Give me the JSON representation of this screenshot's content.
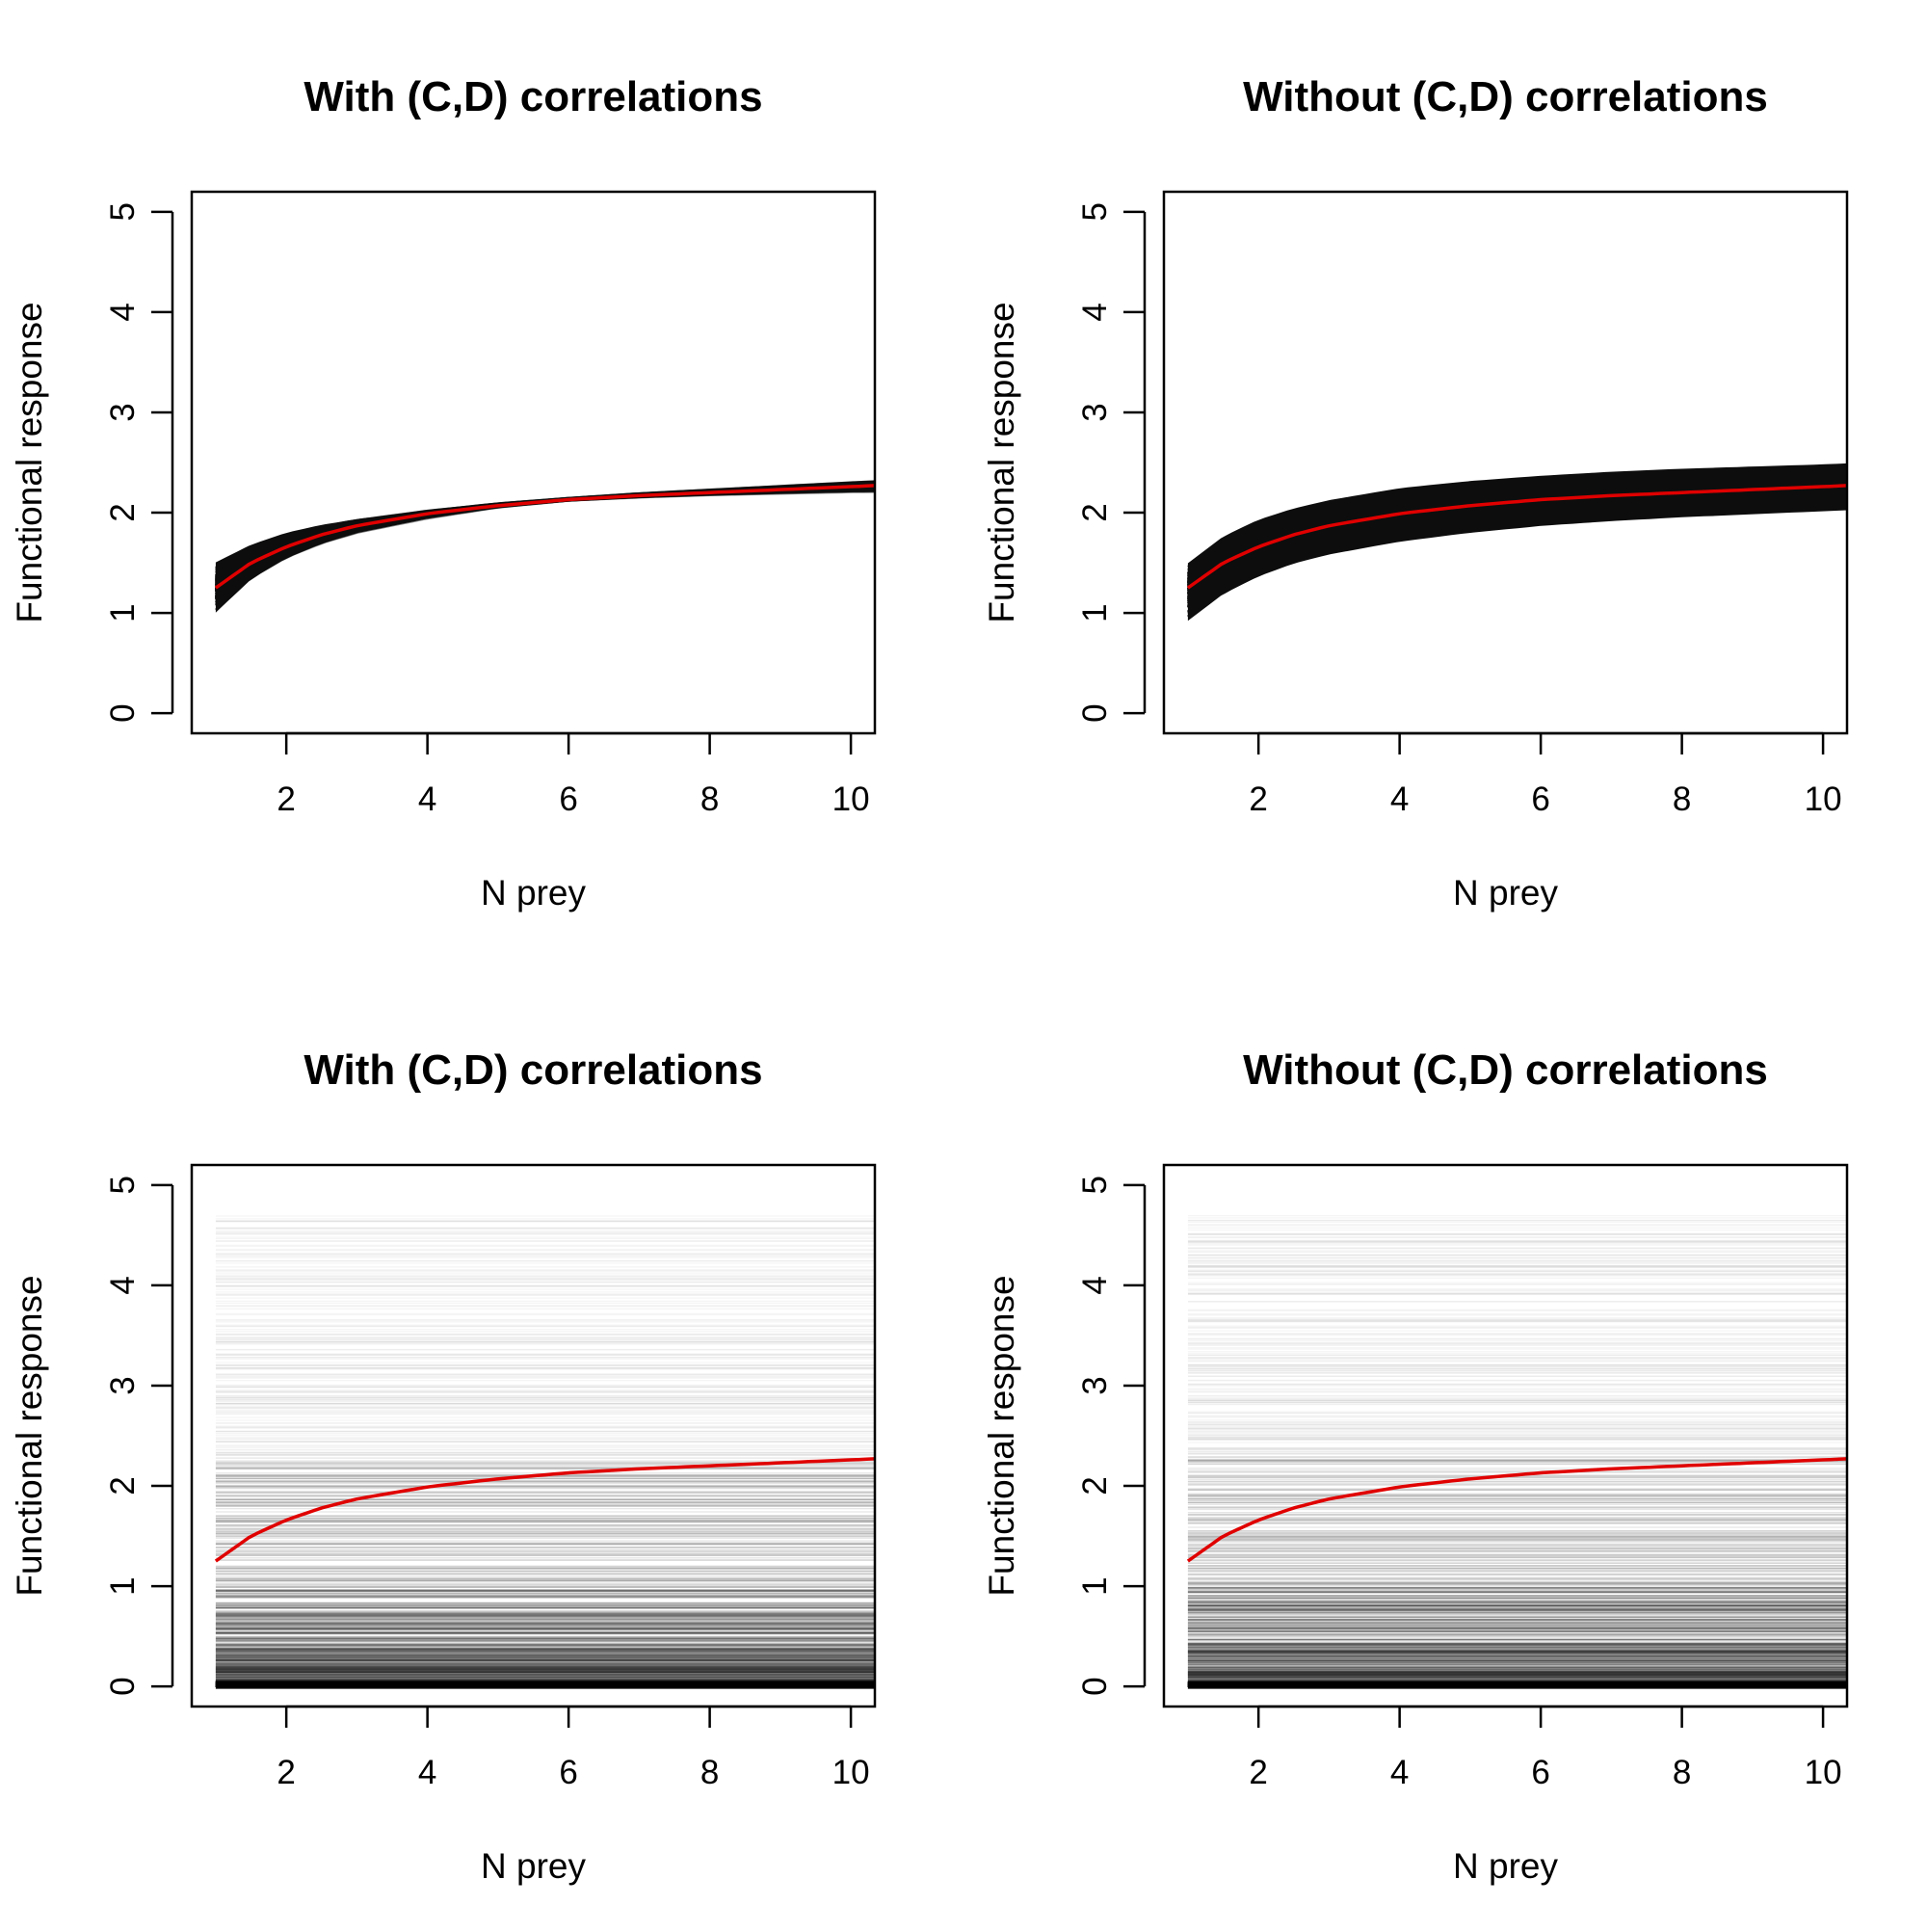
{
  "chart_data": [
    {
      "type": "line",
      "panel": "top-left",
      "title": "With (C,D) correlations",
      "xlabel": "N prey",
      "ylabel": "Functional response",
      "xlim": [
        0.66,
        10.34
      ],
      "ylim": [
        -0.2,
        5.2
      ],
      "xticks": [
        "2",
        "4",
        "6",
        "8",
        "10"
      ],
      "yticks": [
        "0",
        "1",
        "2",
        "3",
        "4",
        "5"
      ],
      "grid": false,
      "legend": "none",
      "band_colors": {
        "dense": "#111111",
        "sparse": "rgba(0,0,0,0.05)"
      },
      "mean_curve_color": "#e00000",
      "x": [
        1,
        1.5,
        2,
        2.5,
        3,
        4,
        5,
        6,
        7,
        8,
        9,
        10,
        10.34
      ],
      "series": [
        {
          "values": [
            1.25,
            1.5,
            1.66,
            1.78,
            1.87,
            1.99,
            2.07,
            2.13,
            2.17,
            2.2,
            2.23,
            2.26,
            2.27
          ]
        },
        {
          "values": [
            1.56,
            1.72,
            1.83,
            1.9,
            1.95,
            2.03,
            2.1,
            2.15,
            2.2,
            2.24,
            2.28,
            2.32,
            2.33
          ]
        },
        {
          "values": [
            0.95,
            1.3,
            1.52,
            1.67,
            1.78,
            1.93,
            2.05,
            2.12,
            2.15,
            2.17,
            2.18,
            2.19,
            2.19
          ]
        }
      ]
    },
    {
      "type": "line",
      "panel": "top-right",
      "title": "Without (C,D) correlations",
      "xlabel": "N prey",
      "ylabel": "Functional response",
      "xlim": [
        0.66,
        10.34
      ],
      "ylim": [
        -0.2,
        5.2
      ],
      "xticks": [
        "2",
        "4",
        "6",
        "8",
        "10"
      ],
      "yticks": [
        "0",
        "1",
        "2",
        "3",
        "4",
        "5"
      ],
      "grid": false,
      "legend": "none",
      "band_colors": {
        "dense": "#111111",
        "sparse": "rgba(0,0,0,0.05)"
      },
      "mean_curve_color": "#e00000",
      "x": [
        1,
        1.5,
        2,
        2.5,
        3,
        4,
        5,
        6,
        7,
        8,
        9,
        10,
        10.34
      ],
      "series": [
        {
          "values": [
            1.25,
            1.5,
            1.66,
            1.78,
            1.87,
            1.99,
            2.07,
            2.13,
            2.17,
            2.2,
            2.23,
            2.26,
            2.27
          ]
        },
        {
          "values": [
            1.55,
            1.82,
            1.99,
            2.1,
            2.18,
            2.3,
            2.37,
            2.42,
            2.46,
            2.49,
            2.51,
            2.53,
            2.54
          ]
        },
        {
          "values": [
            0.85,
            1.12,
            1.3,
            1.43,
            1.52,
            1.65,
            1.74,
            1.81,
            1.86,
            1.9,
            1.93,
            1.96,
            1.97
          ]
        }
      ]
    },
    {
      "type": "line",
      "panel": "bottom-left",
      "title": "With (C,D) correlations",
      "xlabel": "N prey",
      "ylabel": "Functional response",
      "xlim": [
        0.66,
        10.34
      ],
      "ylim": [
        -0.2,
        5.2
      ],
      "xticks": [
        "2",
        "4",
        "6",
        "8",
        "10"
      ],
      "yticks": [
        "0",
        "1",
        "2",
        "3",
        "4",
        "5"
      ],
      "grid": false,
      "legend": "none",
      "line_spread": "horizontal lines from 0 to about 4.7, densest near 0",
      "mean_curve_color": "#e00000",
      "x": [
        1,
        1.5,
        2,
        2.5,
        3,
        4,
        5,
        6,
        7,
        8,
        9,
        10,
        10.34
      ],
      "series": [
        {
          "values": [
            1.25,
            1.5,
            1.66,
            1.78,
            1.87,
            1.99,
            2.07,
            2.13,
            2.17,
            2.2,
            2.23,
            2.26,
            2.27
          ]
        }
      ]
    },
    {
      "type": "line",
      "panel": "bottom-right",
      "title": "Without (C,D) correlations",
      "xlabel": "N prey",
      "ylabel": "Functional response",
      "xlim": [
        0.66,
        10.34
      ],
      "ylim": [
        -0.2,
        5.2
      ],
      "xticks": [
        "2",
        "4",
        "6",
        "8",
        "10"
      ],
      "yticks": [
        "0",
        "1",
        "2",
        "3",
        "4",
        "5"
      ],
      "grid": false,
      "legend": "none",
      "line_spread": "horizontal lines from 0 to about 4.7, densest near 0",
      "mean_curve_color": "#e00000",
      "x": [
        1,
        1.5,
        2,
        2.5,
        3,
        4,
        5,
        6,
        7,
        8,
        9,
        10,
        10.34
      ],
      "series": [
        {
          "values": [
            1.25,
            1.5,
            1.66,
            1.78,
            1.87,
            1.99,
            2.07,
            2.13,
            2.17,
            2.2,
            2.23,
            2.26,
            2.27
          ]
        }
      ]
    }
  ]
}
